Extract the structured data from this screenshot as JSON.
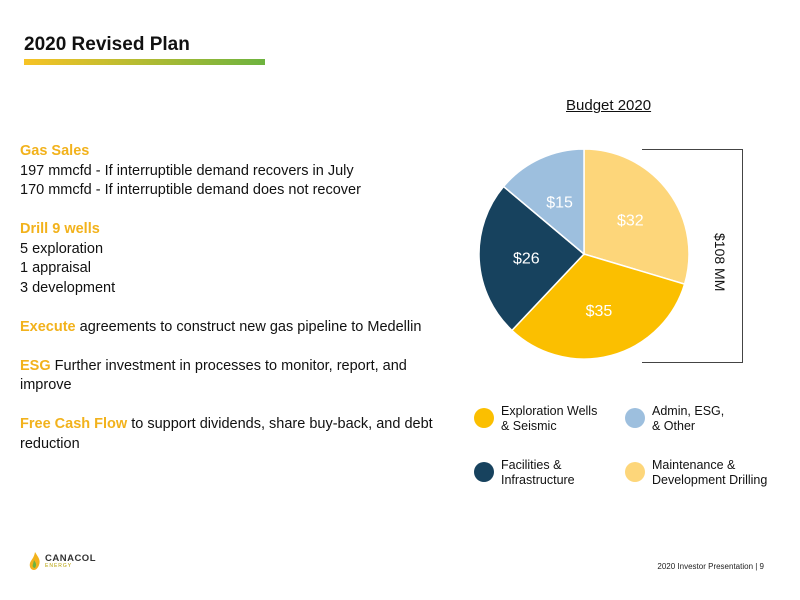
{
  "header": {
    "title": "2020 Revised Plan"
  },
  "content": {
    "gas_sales": {
      "heading": "Gas Sales",
      "lines": [
        "197 mmcfd - If interruptible demand recovers in July",
        "170 mmcfd - If interruptible demand does not recover"
      ]
    },
    "drill": {
      "heading": "Drill 9 wells",
      "lines": [
        "5 exploration",
        "1 appraisal",
        "3 development"
      ]
    },
    "execute": {
      "keyword": "Execute",
      "text": " agreements to construct new gas pipeline to Medellin"
    },
    "esg": {
      "keyword": "ESG",
      "text": " Further investment in processes to monitor, report, and improve"
    },
    "fcf": {
      "keyword": "Free Cash Flow",
      "text": " to support dividends, share buy-back, and debt reduction"
    }
  },
  "chart_data": {
    "type": "pie",
    "title": "Budget 2020",
    "total_label": "$108 MM",
    "slices": [
      {
        "label": "Maintenance & Development Drilling",
        "value": 32,
        "data_label": "$32",
        "color": "#fdd67a"
      },
      {
        "label": "Exploration Wells & Seismic",
        "value": 35,
        "data_label": "$35",
        "color": "#fbbf00"
      },
      {
        "label": "Facilities & Infrastructure",
        "value": 26,
        "data_label": "$26",
        "color": "#17425e"
      },
      {
        "label": "Admin, ESG, & Other",
        "value": 15,
        "data_label": "$15",
        "color": "#9dbfde"
      }
    ],
    "legend": [
      {
        "line1": "Exploration Wells",
        "line2": "& Seismic",
        "color": "#fbbf00"
      },
      {
        "line1": "Admin, ESG,",
        "line2": "& Other",
        "color": "#9dbfde"
      },
      {
        "line1": "Facilities &",
        "line2": "Infrastructure",
        "color": "#17425e"
      },
      {
        "line1": "Maintenance &",
        "line2": "Development Drilling",
        "color": "#fdd67a"
      }
    ]
  },
  "footer": {
    "text": "2020 Investor Presentation | 9"
  },
  "logo": {
    "name": "CANACOL",
    "sub": "ENERGY"
  }
}
